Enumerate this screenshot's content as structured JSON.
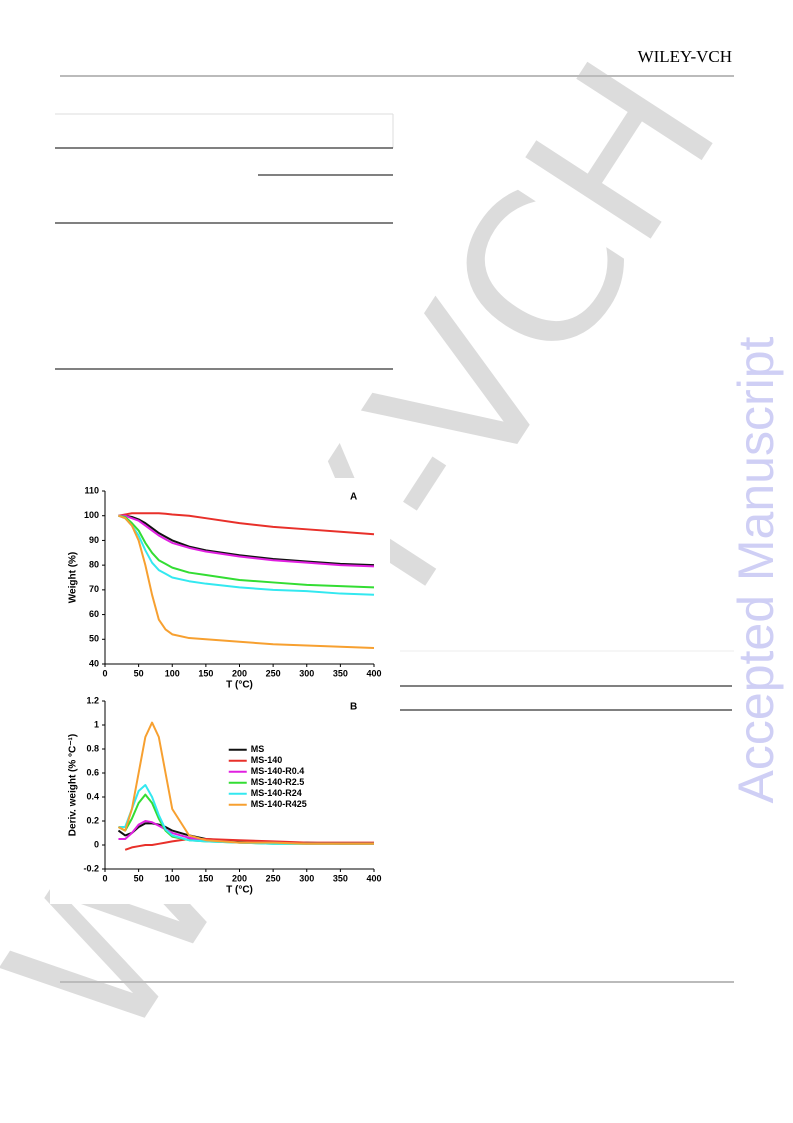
{
  "header": {
    "brand": "WILEY-VCH"
  },
  "watermark": {
    "diagonal": "WILEY-VCH",
    "side": "Accepted Manuscript"
  },
  "chart_data": [
    {
      "type": "line",
      "panel": "A",
      "xlabel": "T (°C)",
      "ylabel": "Weight (%)",
      "x": [
        20,
        30,
        40,
        50,
        60,
        70,
        80,
        90,
        100,
        125,
        150,
        200,
        250,
        300,
        350,
        400
      ],
      "xlim": [
        0,
        400
      ],
      "xticks": [
        0,
        50,
        100,
        150,
        200,
        250,
        300,
        350,
        400
      ],
      "ylim": [
        40,
        110
      ],
      "yticks": [
        40,
        50,
        60,
        70,
        80,
        90,
        100,
        110
      ],
      "series": [
        {
          "name": "MS",
          "color": "#111111",
          "values": [
            100,
            100,
            99.5,
            98.5,
            97,
            95,
            93,
            91.5,
            90,
            87.5,
            86,
            84,
            82.5,
            81.5,
            80.5,
            80
          ]
        },
        {
          "name": "MS-140",
          "color": "#e8302a",
          "values": [
            100,
            100.5,
            101,
            101,
            101,
            101,
            101,
            100.8,
            100.5,
            100,
            99,
            97,
            95.5,
            94.5,
            93.5,
            92.5
          ]
        },
        {
          "name": "MS-140-R0.4",
          "color": "#e020e0",
          "values": [
            100,
            100,
            99,
            98,
            96,
            94,
            92,
            90.5,
            89,
            87,
            85.5,
            83.5,
            82,
            81,
            80,
            79.5
          ]
        },
        {
          "name": "MS-140-R2.5",
          "color": "#33dd33",
          "values": [
            100,
            99.5,
            97,
            94,
            89,
            85,
            82,
            80.5,
            79,
            77,
            76,
            74,
            73,
            72,
            71.5,
            71
          ]
        },
        {
          "name": "MS-140-R24",
          "color": "#33e8f0",
          "values": [
            100,
            99,
            96,
            92,
            86,
            81,
            78,
            76.5,
            75,
            73.5,
            72.5,
            71,
            70,
            69.5,
            68.5,
            68
          ]
        },
        {
          "name": "MS-140-R425",
          "color": "#f7a030",
          "values": [
            100,
            99,
            96,
            90,
            80,
            68,
            58,
            54,
            52,
            50.5,
            50,
            49,
            48,
            47.5,
            47,
            46.5
          ]
        }
      ]
    },
    {
      "type": "line",
      "panel": "B",
      "xlabel": "T (°C)",
      "ylabel": "Deriv. weight (% °C⁻¹)",
      "legend": "center right",
      "x": [
        20,
        30,
        40,
        50,
        60,
        70,
        80,
        90,
        100,
        125,
        150,
        200,
        250,
        300,
        350,
        400
      ],
      "xlim": [
        0,
        400
      ],
      "xticks": [
        0,
        50,
        100,
        150,
        200,
        250,
        300,
        350,
        400
      ],
      "ylim": [
        -0.2,
        1.2
      ],
      "yticks": [
        -0.2,
        0,
        0.2,
        0.4,
        0.6,
        0.8,
        1,
        1.2
      ],
      "series": [
        {
          "name": "MS",
          "color": "#111111",
          "values": [
            0.12,
            0.08,
            0.1,
            0.15,
            0.18,
            0.18,
            0.17,
            0.15,
            0.12,
            0.08,
            0.05,
            0.03,
            0.02,
            0.02,
            0.01,
            0.01
          ]
        },
        {
          "name": "MS-140",
          "color": "#e8302a",
          "values": [
            null,
            -0.04,
            -0.02,
            -0.01,
            0,
            0,
            0.01,
            0.02,
            0.03,
            0.05,
            0.05,
            0.04,
            0.03,
            0.02,
            0.02,
            0.02
          ]
        },
        {
          "name": "MS-140-R0.4",
          "color": "#e020e0",
          "values": [
            0.05,
            0.05,
            0.1,
            0.17,
            0.2,
            0.19,
            0.16,
            0.13,
            0.1,
            0.06,
            0.04,
            0.02,
            0.02,
            0.01,
            0.01,
            0.01
          ]
        },
        {
          "name": "MS-140-R2.5",
          "color": "#33dd33",
          "values": [
            0.15,
            0.12,
            0.22,
            0.35,
            0.42,
            0.35,
            0.22,
            0.12,
            0.07,
            0.04,
            0.03,
            0.02,
            0.01,
            0.01,
            0.01,
            0.01
          ]
        },
        {
          "name": "MS-140-R24",
          "color": "#33e8f0",
          "values": [
            0.15,
            0.15,
            0.3,
            0.45,
            0.5,
            0.4,
            0.25,
            0.13,
            0.08,
            0.04,
            0.03,
            0.02,
            0.01,
            0.01,
            0.01,
            0.01
          ]
        },
        {
          "name": "MS-140-R425",
          "color": "#f7a030",
          "values": [
            0.15,
            0.12,
            0.3,
            0.6,
            0.9,
            1.02,
            0.9,
            0.6,
            0.3,
            0.08,
            0.04,
            0.02,
            0.02,
            0.01,
            0.01,
            0.01
          ]
        }
      ]
    }
  ]
}
